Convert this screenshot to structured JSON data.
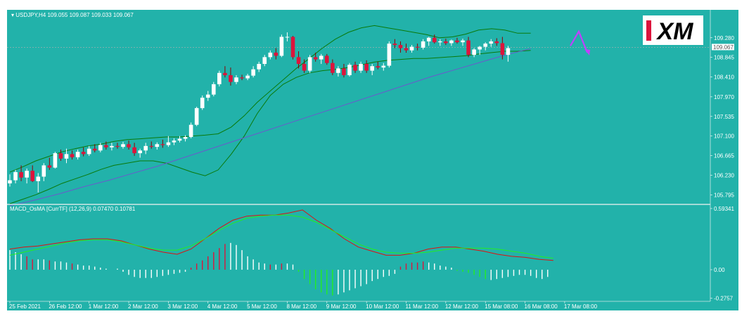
{
  "colors": {
    "background": "#22b2aa",
    "bull_candle": "#ffffff",
    "bear_candle": "#dc143c",
    "bands": "#0a7a0a",
    "ma": "#6a5acd",
    "macd_line": "#e01010",
    "signal_line": "#22ee22",
    "forecast_arrow": "#c040ff",
    "price_marker": "#b0b0b0"
  },
  "logo": {
    "text": "XM"
  },
  "chart_data": [
    {
      "type": "candlestick",
      "title": "USDJPY,H4  109.055 109.087 109.033 109.067",
      "ylim": [
        105.6,
        109.65
      ],
      "y_ticks": [
        "109.280",
        "108.845",
        "108.410",
        "107.970",
        "107.535",
        "107.100",
        "106.665",
        "106.230",
        "105.795"
      ],
      "y_tick_values": [
        109.28,
        108.845,
        108.41,
        107.97,
        107.535,
        107.1,
        106.665,
        106.23,
        105.795
      ],
      "current_price_label": "109.067",
      "current_price": 109.067,
      "x_labels": [
        "25 Feb 2021",
        "26 Feb 12:00",
        "1 Mar 12:00",
        "2 Mar 12:00",
        "3 Mar 12:00",
        "4 Mar 12:00",
        "5 Mar 12:00",
        "8 Mar 12:00",
        "9 Mar 12:00",
        "10 Mar 12:00",
        "11 Mar 12:00",
        "12 Mar 12:00",
        "15 Mar 08:00",
        "16 Mar 08:00",
        "17 Mar 08:00"
      ],
      "x_label_index": [
        0,
        7,
        14,
        21,
        28,
        35,
        42,
        49,
        56,
        63,
        70,
        77,
        84,
        91,
        98
      ],
      "candles": [
        {
          "o": 106.05,
          "h": 106.25,
          "l": 105.98,
          "c": 106.12
        },
        {
          "o": 106.12,
          "h": 106.35,
          "l": 106.05,
          "c": 106.3
        },
        {
          "o": 106.3,
          "h": 106.45,
          "l": 106.1,
          "c": 106.18
        },
        {
          "o": 106.18,
          "h": 106.38,
          "l": 106.05,
          "c": 106.33
        },
        {
          "o": 106.33,
          "h": 106.45,
          "l": 106.08,
          "c": 106.1
        },
        {
          "o": 106.1,
          "h": 106.28,
          "l": 105.85,
          "c": 106.2
        },
        {
          "o": 106.2,
          "h": 106.5,
          "l": 106.1,
          "c": 106.45
        },
        {
          "o": 106.45,
          "h": 106.62,
          "l": 106.35,
          "c": 106.4
        },
        {
          "o": 106.4,
          "h": 106.75,
          "l": 106.38,
          "c": 106.72
        },
        {
          "o": 106.72,
          "h": 106.8,
          "l": 106.55,
          "c": 106.6
        },
        {
          "o": 106.6,
          "h": 106.82,
          "l": 106.5,
          "c": 106.7
        },
        {
          "o": 106.7,
          "h": 106.78,
          "l": 106.58,
          "c": 106.63
        },
        {
          "o": 106.63,
          "h": 106.8,
          "l": 106.58,
          "c": 106.75
        },
        {
          "o": 106.75,
          "h": 106.85,
          "l": 106.65,
          "c": 106.7
        },
        {
          "o": 106.7,
          "h": 106.88,
          "l": 106.66,
          "c": 106.82
        },
        {
          "o": 106.82,
          "h": 106.92,
          "l": 106.74,
          "c": 106.78
        },
        {
          "o": 106.78,
          "h": 106.95,
          "l": 106.74,
          "c": 106.9
        },
        {
          "o": 106.9,
          "h": 106.98,
          "l": 106.8,
          "c": 106.85
        },
        {
          "o": 106.85,
          "h": 106.95,
          "l": 106.78,
          "c": 106.88
        },
        {
          "o": 106.88,
          "h": 106.95,
          "l": 106.82,
          "c": 106.86
        },
        {
          "o": 106.86,
          "h": 106.97,
          "l": 106.82,
          "c": 106.92
        },
        {
          "o": 106.92,
          "h": 107.0,
          "l": 106.8,
          "c": 106.85
        },
        {
          "o": 106.85,
          "h": 106.95,
          "l": 106.66,
          "c": 106.72
        },
        {
          "o": 106.72,
          "h": 106.82,
          "l": 106.62,
          "c": 106.78
        },
        {
          "o": 106.78,
          "h": 106.95,
          "l": 106.7,
          "c": 106.88
        },
        {
          "o": 106.88,
          "h": 106.98,
          "l": 106.82,
          "c": 106.86
        },
        {
          "o": 106.86,
          "h": 106.96,
          "l": 106.8,
          "c": 106.92
        },
        {
          "o": 106.92,
          "h": 107.02,
          "l": 106.84,
          "c": 106.9
        },
        {
          "o": 106.9,
          "h": 107.1,
          "l": 106.86,
          "c": 106.96
        },
        {
          "o": 106.96,
          "h": 107.05,
          "l": 106.9,
          "c": 107.0
        },
        {
          "o": 107.0,
          "h": 107.1,
          "l": 106.96,
          "c": 107.04
        },
        {
          "o": 107.04,
          "h": 107.12,
          "l": 106.98,
          "c": 107.08
        },
        {
          "o": 107.08,
          "h": 107.4,
          "l": 107.05,
          "c": 107.35
        },
        {
          "o": 107.35,
          "h": 107.75,
          "l": 107.32,
          "c": 107.72
        },
        {
          "o": 107.72,
          "h": 108.0,
          "l": 107.68,
          "c": 107.95
        },
        {
          "o": 107.95,
          "h": 108.1,
          "l": 107.88,
          "c": 108.02
        },
        {
          "o": 108.02,
          "h": 108.3,
          "l": 107.98,
          "c": 108.25
        },
        {
          "o": 108.25,
          "h": 108.55,
          "l": 108.2,
          "c": 108.5
        },
        {
          "o": 108.5,
          "h": 108.65,
          "l": 108.4,
          "c": 108.45
        },
        {
          "o": 108.45,
          "h": 108.62,
          "l": 108.22,
          "c": 108.3
        },
        {
          "o": 108.3,
          "h": 108.45,
          "l": 108.25,
          "c": 108.4
        },
        {
          "o": 108.4,
          "h": 108.46,
          "l": 108.34,
          "c": 108.38
        },
        {
          "o": 108.38,
          "h": 108.48,
          "l": 108.34,
          "c": 108.44
        },
        {
          "o": 108.44,
          "h": 108.65,
          "l": 108.4,
          "c": 108.58
        },
        {
          "o": 108.58,
          "h": 108.75,
          "l": 108.52,
          "c": 108.7
        },
        {
          "o": 108.7,
          "h": 108.9,
          "l": 108.65,
          "c": 108.85
        },
        {
          "o": 108.85,
          "h": 109.0,
          "l": 108.8,
          "c": 108.95
        },
        {
          "o": 108.95,
          "h": 109.05,
          "l": 108.8,
          "c": 108.88
        },
        {
          "o": 108.88,
          "h": 109.35,
          "l": 108.85,
          "c": 109.3
        },
        {
          "o": 109.3,
          "h": 109.4,
          "l": 109.2,
          "c": 109.3
        },
        {
          "o": 109.3,
          "h": 109.32,
          "l": 108.8,
          "c": 108.85
        },
        {
          "o": 108.85,
          "h": 108.98,
          "l": 108.6,
          "c": 108.7
        },
        {
          "o": 108.7,
          "h": 108.8,
          "l": 108.5,
          "c": 108.55
        },
        {
          "o": 108.55,
          "h": 108.9,
          "l": 108.5,
          "c": 108.85
        },
        {
          "o": 108.85,
          "h": 108.95,
          "l": 108.75,
          "c": 108.8
        },
        {
          "o": 108.8,
          "h": 108.92,
          "l": 108.7,
          "c": 108.88
        },
        {
          "o": 108.88,
          "h": 108.92,
          "l": 108.68,
          "c": 108.72
        },
        {
          "o": 108.72,
          "h": 108.8,
          "l": 108.45,
          "c": 108.5
        },
        {
          "o": 108.5,
          "h": 108.65,
          "l": 108.42,
          "c": 108.6
        },
        {
          "o": 108.6,
          "h": 108.7,
          "l": 108.4,
          "c": 108.45
        },
        {
          "o": 108.45,
          "h": 108.72,
          "l": 108.42,
          "c": 108.68
        },
        {
          "o": 108.68,
          "h": 108.75,
          "l": 108.5,
          "c": 108.55
        },
        {
          "o": 108.55,
          "h": 108.75,
          "l": 108.5,
          "c": 108.7
        },
        {
          "o": 108.7,
          "h": 108.78,
          "l": 108.5,
          "c": 108.55
        },
        {
          "o": 108.55,
          "h": 108.7,
          "l": 108.45,
          "c": 108.65
        },
        {
          "o": 108.65,
          "h": 108.75,
          "l": 108.58,
          "c": 108.62
        },
        {
          "o": 108.62,
          "h": 108.72,
          "l": 108.55,
          "c": 108.66
        },
        {
          "o": 108.66,
          "h": 109.2,
          "l": 108.62,
          "c": 109.15
        },
        {
          "o": 109.15,
          "h": 109.25,
          "l": 109.05,
          "c": 109.12
        },
        {
          "o": 109.12,
          "h": 109.2,
          "l": 108.95,
          "c": 109.05
        },
        {
          "o": 109.05,
          "h": 109.15,
          "l": 108.95,
          "c": 109.0
        },
        {
          "o": 109.0,
          "h": 109.12,
          "l": 108.95,
          "c": 109.08
        },
        {
          "o": 109.08,
          "h": 109.15,
          "l": 109.0,
          "c": 109.06
        },
        {
          "o": 109.06,
          "h": 109.25,
          "l": 109.02,
          "c": 109.2
        },
        {
          "o": 109.2,
          "h": 109.3,
          "l": 109.1,
          "c": 109.28
        },
        {
          "o": 109.28,
          "h": 109.35,
          "l": 109.15,
          "c": 109.18
        },
        {
          "o": 109.18,
          "h": 109.25,
          "l": 109.1,
          "c": 109.2
        },
        {
          "o": 109.2,
          "h": 109.26,
          "l": 109.12,
          "c": 109.16
        },
        {
          "o": 109.16,
          "h": 109.24,
          "l": 109.1,
          "c": 109.22
        },
        {
          "o": 109.22,
          "h": 109.28,
          "l": 109.15,
          "c": 109.18
        },
        {
          "o": 109.18,
          "h": 109.26,
          "l": 109.1,
          "c": 109.22
        },
        {
          "o": 109.22,
          "h": 109.3,
          "l": 108.85,
          "c": 108.9
        },
        {
          "o": 108.9,
          "h": 109.05,
          "l": 108.85,
          "c": 109.02
        },
        {
          "o": 109.02,
          "h": 109.1,
          "l": 108.9,
          "c": 109.08
        },
        {
          "o": 109.08,
          "h": 109.18,
          "l": 109.0,
          "c": 109.15
        },
        {
          "o": 109.15,
          "h": 109.25,
          "l": 109.08,
          "c": 109.2
        },
        {
          "o": 109.2,
          "h": 109.27,
          "l": 109.1,
          "c": 109.16
        },
        {
          "o": 109.16,
          "h": 109.3,
          "l": 108.8,
          "c": 108.9
        },
        {
          "o": 108.9,
          "h": 109.1,
          "l": 108.75,
          "c": 109.05
        }
      ],
      "upper_band": [
        106.3,
        106.42,
        106.55,
        106.65,
        106.75,
        106.82,
        106.88,
        106.92,
        106.98,
        107.02,
        107.04,
        107.06,
        107.08,
        107.08,
        107.1,
        107.12,
        107.15,
        107.3,
        107.55,
        107.85,
        108.1,
        108.35,
        108.6,
        108.82,
        109.05,
        109.25,
        109.4,
        109.5,
        109.55,
        109.5,
        109.45,
        109.4,
        109.35,
        109.28,
        109.3,
        109.36,
        109.45,
        109.48,
        109.45,
        109.38,
        109.38
      ],
      "lower_band": [
        105.6,
        105.7,
        105.8,
        105.92,
        106.05,
        106.15,
        106.25,
        106.36,
        106.45,
        106.5,
        106.55,
        106.55,
        106.5,
        106.4,
        106.3,
        106.22,
        106.35,
        106.7,
        107.1,
        107.6,
        108.0,
        108.25,
        108.4,
        108.5,
        108.55,
        108.58,
        108.62,
        108.68,
        108.74,
        108.78,
        108.8,
        108.82,
        108.82,
        108.84,
        108.86,
        108.88,
        108.92,
        108.95,
        108.98,
        108.98,
        109.0
      ],
      "ma_line": [
        105.55,
        105.68,
        105.82,
        105.98,
        106.12,
        106.28,
        106.44,
        106.62,
        106.8,
        106.98,
        107.16,
        107.34,
        107.52,
        107.7,
        107.88,
        108.06,
        108.24,
        108.42,
        108.58,
        108.74,
        108.9,
        109.04
      ],
      "forecast_arrow": [
        {
          "x": 99,
          "y": 109.1
        },
        {
          "x": 100.5,
          "y": 109.42
        },
        {
          "x": 102,
          "y": 108.95
        }
      ]
    },
    {
      "type": "bar",
      "title": "MACD_OsMA [CurrTF] (12,26,9) 0.07470 0.10781",
      "ylim": [
        -0.3,
        0.62
      ],
      "y_ticks": [
        "0.59341",
        "0.00",
        "-0.2757"
      ],
      "y_tick_values": [
        0.59341,
        0.0,
        -0.2757
      ],
      "histogram": [
        0.19,
        0.17,
        0.15,
        0.13,
        0.1,
        0.1,
        0.1,
        0.09,
        0.08,
        0.08,
        0.07,
        0.06,
        0.05,
        0.04,
        0.04,
        0.03,
        0.02,
        0.01,
        0.0,
        0.01,
        -0.02,
        -0.05,
        -0.07,
        -0.08,
        -0.08,
        -0.08,
        -0.07,
        -0.06,
        -0.05,
        -0.04,
        -0.03,
        -0.02,
        0.02,
        0.06,
        0.09,
        0.13,
        0.17,
        0.21,
        0.25,
        0.26,
        0.24,
        0.19,
        0.13,
        0.1,
        0.07,
        0.06,
        0.05,
        0.05,
        0.06,
        0.06,
        0.05,
        -0.02,
        -0.09,
        -0.14,
        -0.19,
        -0.22,
        -0.24,
        -0.25,
        -0.24,
        -0.22,
        -0.2,
        -0.18,
        -0.16,
        -0.14,
        -0.11,
        -0.09,
        -0.07,
        -0.06,
        -0.04,
        0.03,
        0.06,
        0.07,
        0.07,
        0.08,
        0.07,
        0.06,
        0.04,
        0.03,
        0.02,
        -0.01,
        -0.02,
        -0.03,
        -0.05,
        -0.07,
        -0.09,
        -0.1,
        -0.09,
        -0.08,
        -0.07,
        -0.06,
        -0.05,
        -0.05,
        -0.06,
        -0.08,
        -0.09,
        -0.07
      ],
      "histogram_colors": [
        "w",
        "w",
        "w",
        "r",
        "r",
        "w",
        "w",
        "r",
        "w",
        "w",
        "w",
        "r",
        "w",
        "w",
        "w",
        "w",
        "w",
        "w",
        "w",
        "w",
        "w",
        "w",
        "w",
        "w",
        "w",
        "w",
        "w",
        "w",
        "w",
        "w",
        "w",
        "w",
        "r",
        "r",
        "r",
        "r",
        "r",
        "r",
        "r",
        "w",
        "w",
        "w",
        "w",
        "w",
        "w",
        "w",
        "r",
        "w",
        "r",
        "w",
        "w",
        "g",
        "g",
        "g",
        "g",
        "g",
        "g",
        "g",
        "w",
        "w",
        "w",
        "w",
        "w",
        "w",
        "w",
        "w",
        "w",
        "w",
        "w",
        "r",
        "r",
        "r",
        "r",
        "r",
        "w",
        "w",
        "w",
        "w",
        "w",
        "g",
        "g",
        "g",
        "g",
        "g",
        "g",
        "w",
        "w",
        "w",
        "w",
        "w",
        "w",
        "w",
        "w",
        "w",
        "w",
        "w"
      ],
      "macd_line": [
        0.2,
        0.22,
        0.23,
        0.25,
        0.27,
        0.29,
        0.3,
        0.3,
        0.28,
        0.24,
        0.2,
        0.17,
        0.15,
        0.2,
        0.3,
        0.4,
        0.48,
        0.52,
        0.53,
        0.53,
        0.55,
        0.58,
        0.48,
        0.4,
        0.3,
        0.22,
        0.18,
        0.14,
        0.14,
        0.16,
        0.2,
        0.22,
        0.22,
        0.2,
        0.18,
        0.15,
        0.13,
        0.12,
        0.1,
        0.09
      ],
      "signal_line": [
        0.14,
        0.17,
        0.2,
        0.23,
        0.26,
        0.28,
        0.29,
        0.29,
        0.27,
        0.24,
        0.21,
        0.19,
        0.19,
        0.23,
        0.3,
        0.38,
        0.45,
        0.5,
        0.52,
        0.53,
        0.53,
        0.51,
        0.46,
        0.39,
        0.32,
        0.25,
        0.2,
        0.17,
        0.16,
        0.16,
        0.17,
        0.19,
        0.21,
        0.21,
        0.21,
        0.2,
        0.18,
        0.16,
        0.13,
        0.11
      ]
    }
  ]
}
